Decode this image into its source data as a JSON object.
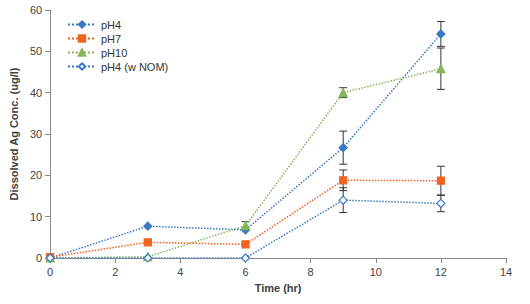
{
  "chart_data": {
    "type": "line",
    "x_label": "Time (hr)",
    "y_label": "Dissolved Ag Conc. (ug/l)",
    "x": [
      0,
      3,
      6,
      9,
      12
    ],
    "xlim": [
      0,
      14
    ],
    "xticks": [
      0,
      2,
      4,
      6,
      8,
      10,
      12,
      14
    ],
    "ylim": [
      0,
      60
    ],
    "yticks": [
      0,
      10,
      20,
      30,
      40,
      50,
      60
    ],
    "grid": false,
    "legend": "top-left",
    "series": [
      {
        "name": "pH4",
        "color": "#3b78c4",
        "marker": "diamond",
        "line_style": "dotted",
        "values": [
          0,
          7.7,
          6.8,
          26.7,
          54.2
        ],
        "errors": [
          null,
          null,
          null,
          4,
          3
        ]
      },
      {
        "name": "pH7",
        "color": "#f0621e",
        "marker": "square",
        "line_style": "dotted",
        "values": [
          0.2,
          3.8,
          3.3,
          18.8,
          18.7
        ],
        "errors": [
          null,
          null,
          null,
          2.5,
          3.5
        ]
      },
      {
        "name": "pH10",
        "color": "#86b65a",
        "marker": "triangle",
        "line_style": "dotted",
        "values": [
          0,
          0.3,
          7.8,
          40,
          45.8
        ],
        "errors": [
          null,
          null,
          1,
          1.2,
          5
        ]
      },
      {
        "name": "pH4 (w NOM)",
        "color": "#3b78c4",
        "marker": "diamond-open",
        "line_style": "dotted",
        "values": [
          0,
          0,
          0,
          14,
          13.2
        ],
        "errors": [
          null,
          null,
          null,
          3,
          2
        ]
      }
    ]
  }
}
